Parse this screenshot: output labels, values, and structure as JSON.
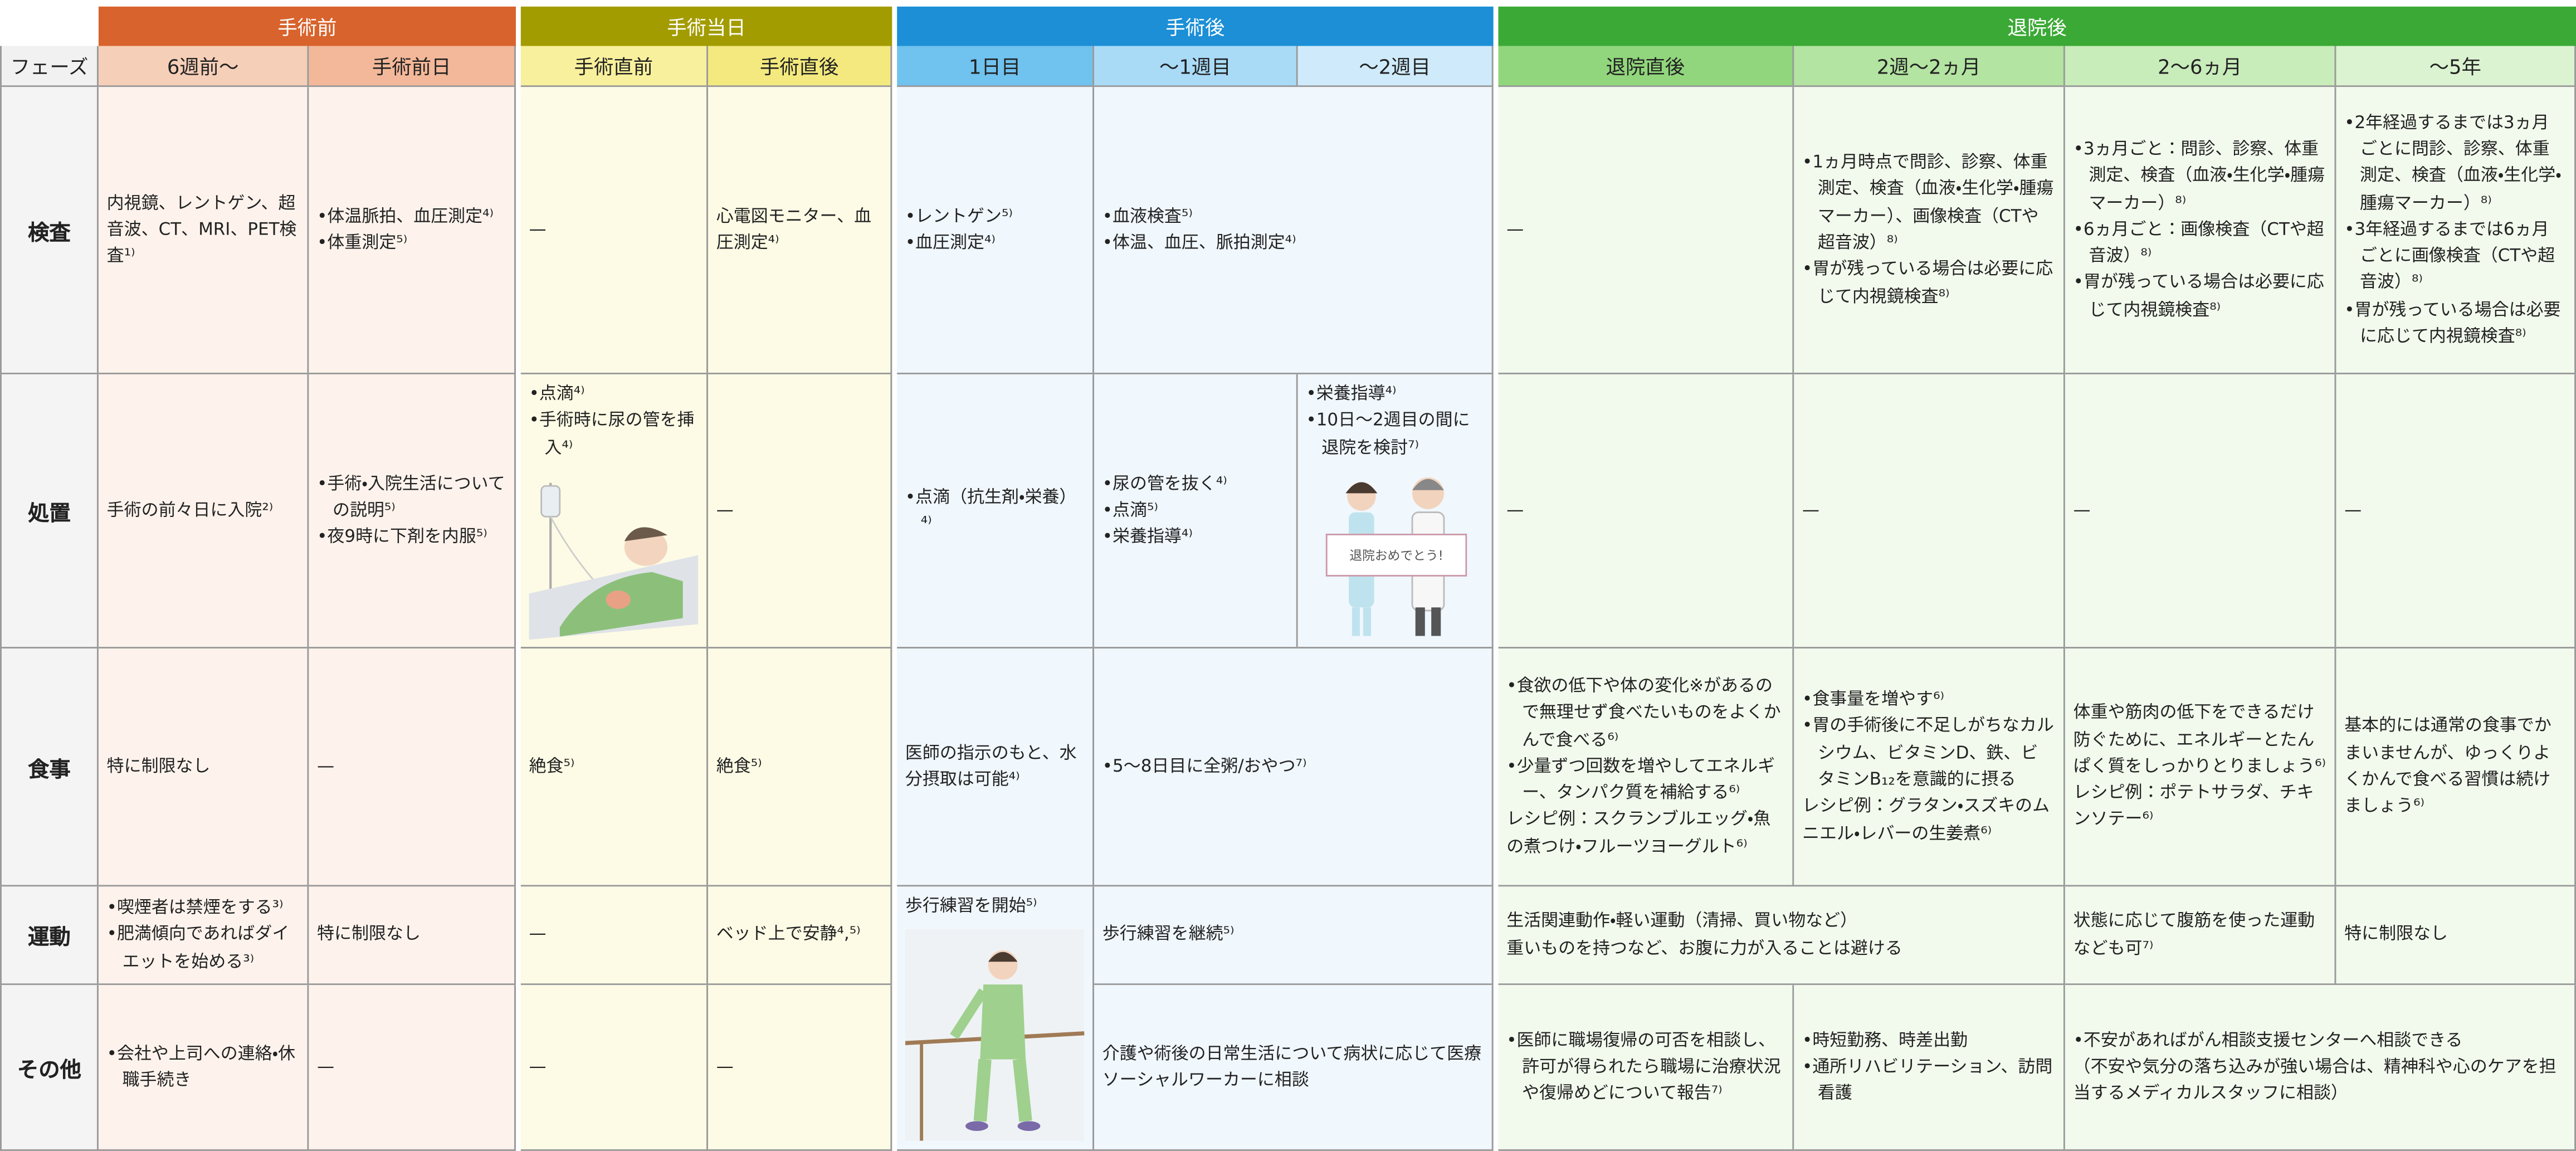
{
  "phase_label": "フェーズ",
  "header_groups": [
    "手術前",
    "手術当日",
    "手術後",
    "退院後"
  ],
  "subheaders": [
    "6週前〜",
    "手術前日",
    "手術直前",
    "手術直後",
    "1日目",
    "〜1週目",
    "〜2週目",
    "退院直後",
    "2週〜2ヵ月",
    "2〜6ヵ月",
    "〜5年"
  ],
  "rows": [
    {
      "label": "検査",
      "cells": [
        {
          "lines": [
            "内視鏡、レントゲン、超音波、CT、MRI、PET検査¹⁾"
          ]
        },
        {
          "lines": [
            "•体温脈拍、血圧測定⁴⁾",
            "•体重測定⁵⁾"
          ]
        },
        {
          "lines": [
            "—"
          ]
        },
        {
          "lines": [
            "心電図モニター、血圧測定⁴⁾"
          ]
        },
        {
          "lines": [
            "•レントゲン⁵⁾",
            "•血圧測定⁴⁾"
          ]
        },
        {
          "lines": [
            "•血液検査⁵⁾",
            "•体温、血圧、脈拍測定⁴⁾"
          ]
        },
        {
          "lines": [
            "—"
          ]
        },
        {
          "lines": [
            "•1ヵ月時点で問診、診察、体重測定、検査（血液・生化学・腫瘍マーカー）、画像検査（CTや超音波）⁸⁾",
            "•胃が残っている場合は必要に応じて内視鏡検査⁸⁾"
          ]
        },
        {
          "lines": [
            "•3ヵ月ごと：問診、診察、体重測定、検査（血液・生化学・腫瘍マーカー）⁸⁾",
            "•6ヵ月ごと：画像検査（CTや超音波）⁸⁾",
            "•胃が残っている場合は必要に応じて内視鏡検査⁸⁾"
          ]
        },
        {
          "lines": [
            "•2年経過するまでは3ヵ月ごとに問診、診察、体重測定、検査（血液・生化学・腫瘍マーカー）⁸⁾",
            "•3年経過するまでは6ヵ月ごとに画像検査（CTや超音波）⁸⁾",
            "•胃が残っている場合は必要に応じて内視鏡検査⁸⁾"
          ]
        }
      ]
    },
    {
      "label": "処置",
      "cells": [
        {
          "lines": [
            "手術の前々日に入院²⁾"
          ]
        },
        {
          "lines": [
            "•手術・入院生活についての説明⁵⁾",
            "•夜9時に下剤を内服⁵⁾"
          ]
        },
        {
          "lines": [
            "•点滴⁴⁾",
            "•手術時に尿の管を挿入⁴⁾"
          ]
        },
        {
          "lines": [
            "—"
          ]
        },
        {
          "lines": [
            "•点滴（抗生剤・栄養）⁴⁾"
          ]
        },
        {
          "lines": [
            "•尿の管を抜く⁴⁾",
            "•点滴⁵⁾",
            "•栄養指導⁴⁾"
          ]
        },
        {
          "lines": [
            "•栄養指導⁴⁾",
            "•10日〜2週目の間に退院を検討⁷⁾"
          ],
          "image_text": "退院おめでとう!"
        },
        {
          "lines": [
            "—"
          ]
        },
        {
          "lines": [
            "—"
          ]
        },
        {
          "lines": [
            "—"
          ]
        },
        {
          "lines": [
            "—"
          ]
        }
      ]
    },
    {
      "label": "食事",
      "cells": [
        {
          "lines": [
            "特に制限なし"
          ]
        },
        {
          "lines": [
            "—"
          ]
        },
        {
          "lines": [
            "絶食⁵⁾"
          ]
        },
        {
          "lines": [
            "絶食⁵⁾"
          ]
        },
        {
          "lines": [
            "医師の指示のもと、水分摂取は可能⁴⁾"
          ]
        },
        {
          "lines": [
            "•5〜8日目に全粥/おやつ⁷⁾"
          ]
        },
        {
          "lines": [
            "•食欲の低下や体の変化※があるので無理せず食べたいものをよくかんで食べる⁶⁾",
            "•少量ずつ回数を増やしてエネルギー、タンパク質を補給する⁶⁾",
            "レシピ例：スクランブルエッグ・魚の煮つけ・フルーツヨーグルト⁶⁾"
          ]
        },
        {
          "lines": [
            "•食事量を増やす⁶⁾",
            "•胃の手術後に不足しがちなカルシウム、ビタミンD、鉄、ビタミンB₁₂を意識的に摂る",
            "レシピ例：グラタン・スズキのムニエル・レバーの生姜煮⁶⁾"
          ]
        },
        {
          "lines": [
            "体重や筋肉の低下をできるだけ防ぐために、エネルギーとたんぱく質をしっかりとりましょう⁶⁾",
            "レシピ例：ポテトサラダ、チキンソテー⁶⁾"
          ]
        },
        {
          "lines": [
            "基本的には通常の食事でかまいませんが、ゆっくりよくかんで食べる習慣は続けましょう⁶⁾"
          ]
        }
      ]
    },
    {
      "label": "運動",
      "cells": [
        {
          "lines": [
            "•喫煙者は禁煙をする³⁾",
            "•肥満傾向であればダイエットを始める³⁾"
          ]
        },
        {
          "lines": [
            "特に制限なし"
          ]
        },
        {
          "lines": [
            "—"
          ]
        },
        {
          "lines": [
            "ベッド上で安静⁴,⁵⁾"
          ]
        },
        {
          "lines": [
            "歩行練習を開始⁵⁾"
          ]
        },
        {
          "lines": [
            "歩行練習を継続⁵⁾"
          ]
        },
        {
          "lines": [
            "生活関連動作・軽い運動（清掃、買い物など）",
            "重いものを持つなど、お腹に力が入ることは避ける"
          ]
        },
        {
          "lines": [
            "状態に応じて腹筋を使った運動なども可⁷⁾"
          ]
        },
        {
          "lines": [
            "特に制限なし"
          ]
        }
      ]
    },
    {
      "label": "その他",
      "cells": [
        {
          "lines": [
            "•会社や上司への連絡・休職手続き"
          ]
        },
        {
          "lines": [
            "—"
          ]
        },
        {
          "lines": [
            "—"
          ]
        },
        {
          "lines": [
            "—"
          ]
        },
        {
          "lines": [
            "介護や術後の日常生活について病状に応じて医療ソーシャルワーカーに相談"
          ]
        },
        {
          "lines": [
            "•医師に職場復帰の可否を相談し、許可が得られたら職場に治療状況や復帰めどについて報告⁷⁾"
          ]
        },
        {
          "lines": [
            "•時短勤務、時差出勤",
            "•通所リハビリテーション、訪問看護"
          ]
        },
        {
          "lines": [
            "•不安があればがん相談支援センターへ相談できる",
            "（不安や気分の落ち込みが強い場合は、精神科や心のケアを担当するメディカルスタッフに相談）"
          ]
        }
      ]
    }
  ]
}
